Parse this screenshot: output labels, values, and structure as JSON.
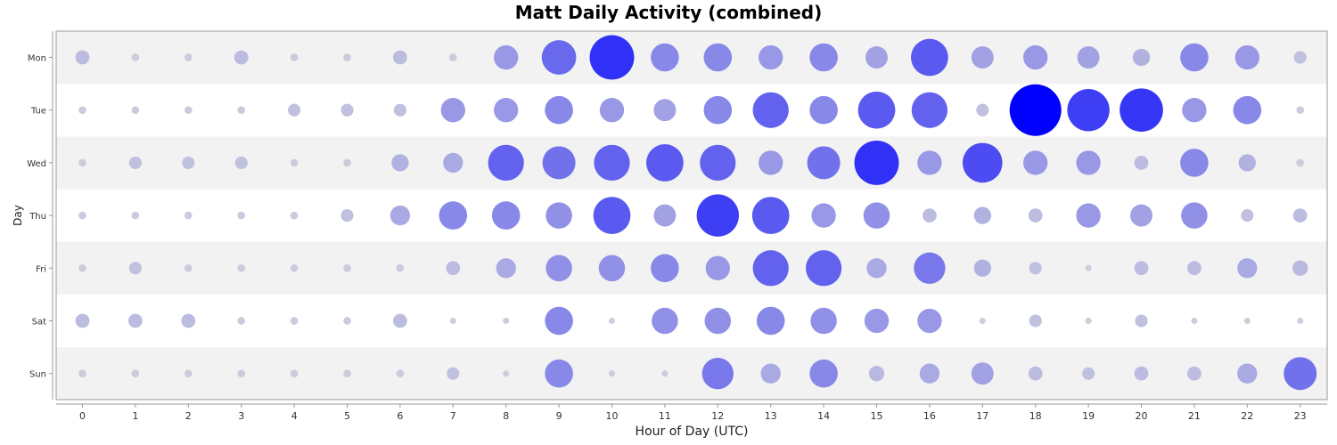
{
  "chart_data": {
    "type": "scatter",
    "title": "Matt Daily Activity (combined)",
    "xlabel": "Hour of Day (UTC)",
    "ylabel": "Day",
    "hours": [
      "0",
      "1",
      "2",
      "3",
      "4",
      "5",
      "6",
      "7",
      "8",
      "9",
      "10",
      "11",
      "12",
      "13",
      "14",
      "15",
      "16",
      "17",
      "18",
      "19",
      "20",
      "21",
      "22",
      "23"
    ],
    "days": [
      "Mon",
      "Tue",
      "Wed",
      "Thu",
      "Fri",
      "Sat",
      "Sun"
    ],
    "value_unit": "relative activity (0-10, estimated from bubble size)",
    "values": {
      "Mon": [
        1,
        0.3,
        0.3,
        1,
        0.3,
        0.3,
        1,
        0.3,
        3,
        6,
        10,
        4,
        4,
        3,
        4,
        2.5,
        7,
        2.5,
        3,
        2.5,
        1.5,
        4,
        3,
        0.8
      ],
      "Tue": [
        0.3,
        0.3,
        0.3,
        0.3,
        0.8,
        0.8,
        0.8,
        3,
        3,
        4,
        3,
        2.5,
        4,
        6.5,
        4,
        7,
        6.5,
        0.8,
        13.5,
        9,
        9.5,
        3,
        4,
        0.3
      ],
      "Wed": [
        0.3,
        0.8,
        0.8,
        0.8,
        0.3,
        0.3,
        1.5,
        2,
        6.5,
        5.5,
        6.5,
        7,
        6.5,
        3,
        5.5,
        10,
        3,
        8,
        3,
        3,
        1,
        4,
        1.5,
        0.3
      ],
      "Thu": [
        0.3,
        0.3,
        0.3,
        0.3,
        0.3,
        0.8,
        2,
        4,
        4,
        3.5,
        7,
        2.5,
        9,
        7,
        3,
        3.5,
        1,
        1.5,
        1,
        3,
        2.5,
        3.5,
        0.8,
        1
      ],
      "Fri": [
        0.3,
        0.8,
        0.3,
        0.3,
        0.3,
        0.3,
        0.3,
        1,
        2,
        3.5,
        3.5,
        4,
        3,
        6.5,
        6.5,
        2,
        5,
        1.5,
        0.8,
        0.2,
        1,
        1,
        2,
        1.2
      ],
      "Sat": [
        1,
        1,
        1,
        0.3,
        0.3,
        0.3,
        1,
        0.2,
        0.2,
        4,
        0.2,
        3.5,
        3.5,
        4,
        3.5,
        3,
        3,
        0.2,
        0.8,
        0.2,
        0.8,
        0.2,
        0.2,
        0.2
      ],
      "Sun": [
        0.3,
        0.3,
        0.3,
        0.3,
        0.3,
        0.3,
        0.3,
        0.8,
        0.2,
        4,
        0.2,
        0.2,
        5,
        2,
        4,
        1.2,
        2,
        2.5,
        1,
        0.8,
        1,
        1,
        2,
        5.5
      ]
    },
    "color_scale": {
      "low": "#d3d3dc",
      "high": "#0000ff"
    },
    "row_band_colors": [
      "#f2f2f2",
      "#ffffff"
    ]
  }
}
